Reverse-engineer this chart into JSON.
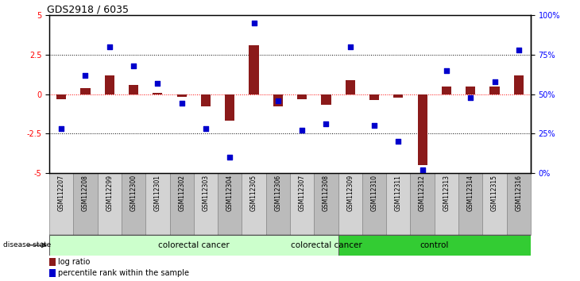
{
  "title": "GDS2918 / 6035",
  "samples": [
    "GSM112207",
    "GSM112208",
    "GSM112299",
    "GSM112300",
    "GSM112301",
    "GSM112302",
    "GSM112303",
    "GSM112304",
    "GSM112305",
    "GSM112306",
    "GSM112307",
    "GSM112308",
    "GSM112309",
    "GSM112310",
    "GSM112311",
    "GSM112312",
    "GSM112313",
    "GSM112314",
    "GSM112315",
    "GSM112316"
  ],
  "log_ratio": [
    -0.3,
    0.4,
    1.2,
    0.6,
    0.1,
    -0.15,
    -0.8,
    -1.7,
    3.1,
    -0.8,
    -0.3,
    -0.7,
    0.9,
    -0.35,
    -0.2,
    -4.5,
    0.5,
    0.5,
    0.5,
    1.2
  ],
  "percentile": [
    28,
    62,
    80,
    68,
    57,
    44,
    28,
    10,
    95,
    46,
    27,
    31,
    80,
    30,
    20,
    2,
    65,
    48,
    58,
    78
  ],
  "colorectal_cancer_count": 12,
  "control_count": 8,
  "bar_color": "#8B1A1A",
  "dot_color": "#0000CC",
  "ylim_left": [
    -5,
    5
  ],
  "ylim_right": [
    0,
    100
  ],
  "yticks_left": [
    -5,
    -2.5,
    0,
    2.5,
    5
  ],
  "yticks_right": [
    0,
    25,
    50,
    75,
    100
  ],
  "ytick_labels_right": [
    "0%",
    "25%",
    "50%",
    "75%",
    "100%"
  ],
  "cancer_color": "#CCFFCC",
  "control_color": "#33CC33",
  "tick_bg_light": "#D3D3D3",
  "tick_bg_dark": "#BBBBBB",
  "legend_bar_label": "log ratio",
  "legend_dot_label": "percentile rank within the sample",
  "disease_state_label": "disease state",
  "colorectal_label": "colorectal cancer",
  "control_label": "control"
}
